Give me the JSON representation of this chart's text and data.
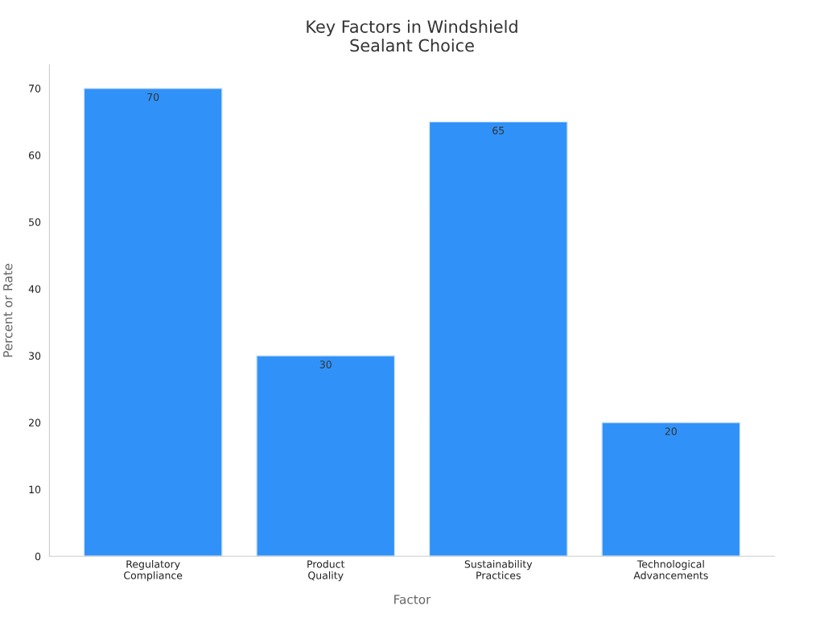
{
  "chart_data": {
    "type": "bar",
    "title": "Key Factors in Windshield\nSealant Choice",
    "xlabel": "Factor",
    "ylabel": "Percent or Rate",
    "categories": [
      "Regulatory\nCompliance",
      "Product\nQuality",
      "Sustainability\nPractices",
      "Technological\nAdvancements"
    ],
    "values": [
      70,
      30,
      65,
      20
    ],
    "color": "#3092f8",
    "ylim": [
      0,
      73.5
    ],
    "yticks": [
      0,
      10,
      20,
      30,
      40,
      50,
      60,
      70
    ],
    "grid": false,
    "data_labels": true
  }
}
